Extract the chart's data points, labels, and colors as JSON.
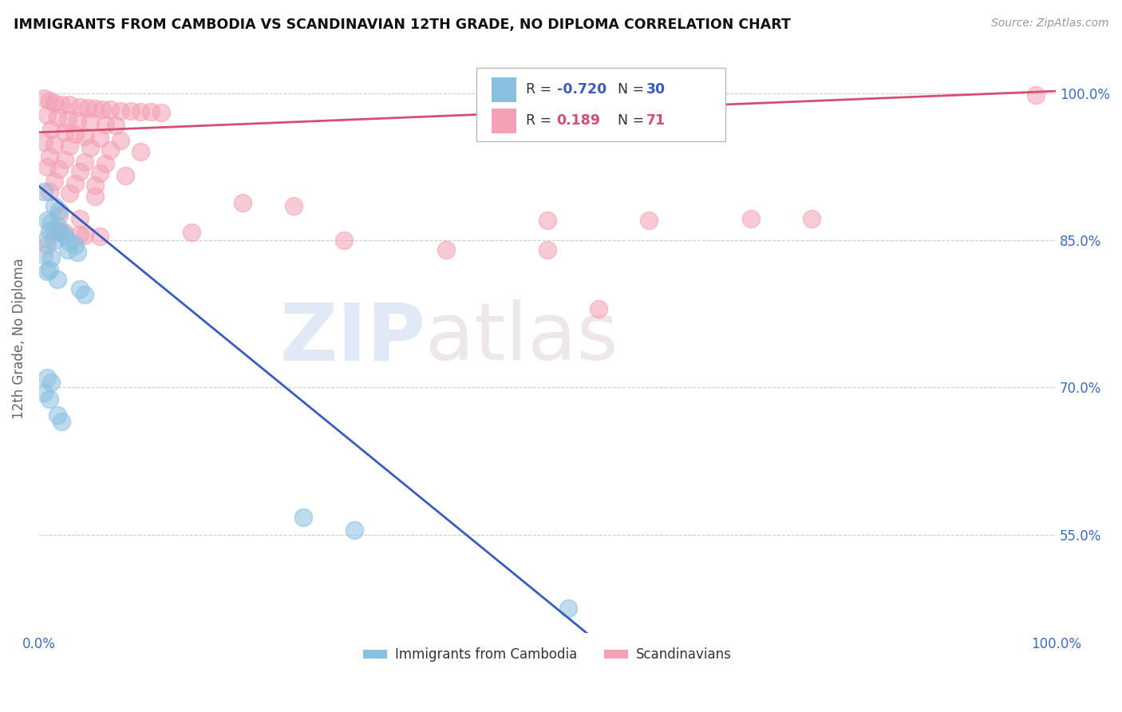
{
  "title": "IMMIGRANTS FROM CAMBODIA VS SCANDINAVIAN 12TH GRADE, NO DIPLOMA CORRELATION CHART",
  "source": "Source: ZipAtlas.com",
  "ylabel": "12th Grade, No Diploma",
  "legend_cambodia": "Immigrants from Cambodia",
  "legend_scandinavian": "Scandinavians",
  "color_cambodia": "#89c0e0",
  "color_scandinavian": "#f4a0b5",
  "color_trendline_cambodia": "#3a5cbf",
  "color_trendline_scandinavian": "#d45070",
  "background_color": "#ffffff",
  "cambodia_scatter": [
    [
      0.005,
      0.9
    ],
    [
      0.015,
      0.885
    ],
    [
      0.02,
      0.88
    ],
    [
      0.008,
      0.87
    ],
    [
      0.012,
      0.868
    ],
    [
      0.018,
      0.865
    ],
    [
      0.01,
      0.86
    ],
    [
      0.022,
      0.858
    ],
    [
      0.025,
      0.855
    ],
    [
      0.008,
      0.852
    ],
    [
      0.015,
      0.85
    ],
    [
      0.03,
      0.848
    ],
    [
      0.035,
      0.845
    ],
    [
      0.028,
      0.84
    ],
    [
      0.038,
      0.838
    ],
    [
      0.005,
      0.835
    ],
    [
      0.012,
      0.832
    ],
    [
      0.01,
      0.82
    ],
    [
      0.008,
      0.818
    ],
    [
      0.018,
      0.81
    ],
    [
      0.04,
      0.8
    ],
    [
      0.045,
      0.795
    ],
    [
      0.008,
      0.71
    ],
    [
      0.012,
      0.705
    ],
    [
      0.005,
      0.695
    ],
    [
      0.01,
      0.688
    ],
    [
      0.018,
      0.672
    ],
    [
      0.022,
      0.665
    ],
    [
      0.26,
      0.568
    ],
    [
      0.31,
      0.555
    ],
    [
      0.52,
      0.475
    ]
  ],
  "scandinavian_scatter": [
    [
      0.005,
      0.995
    ],
    [
      0.01,
      0.992
    ],
    [
      0.015,
      0.99
    ],
    [
      0.022,
      0.988
    ],
    [
      0.03,
      0.988
    ],
    [
      0.04,
      0.986
    ],
    [
      0.048,
      0.985
    ],
    [
      0.055,
      0.984
    ],
    [
      0.062,
      0.983
    ],
    [
      0.07,
      0.983
    ],
    [
      0.08,
      0.982
    ],
    [
      0.09,
      0.982
    ],
    [
      0.1,
      0.981
    ],
    [
      0.11,
      0.981
    ],
    [
      0.12,
      0.98
    ],
    [
      0.008,
      0.978
    ],
    [
      0.018,
      0.975
    ],
    [
      0.028,
      0.973
    ],
    [
      0.038,
      0.972
    ],
    [
      0.05,
      0.97
    ],
    [
      0.065,
      0.968
    ],
    [
      0.075,
      0.967
    ],
    [
      0.012,
      0.963
    ],
    [
      0.025,
      0.96
    ],
    [
      0.035,
      0.958
    ],
    [
      0.045,
      0.956
    ],
    [
      0.06,
      0.954
    ],
    [
      0.08,
      0.952
    ],
    [
      0.005,
      0.95
    ],
    [
      0.015,
      0.948
    ],
    [
      0.03,
      0.946
    ],
    [
      0.05,
      0.944
    ],
    [
      0.07,
      0.942
    ],
    [
      0.1,
      0.94
    ],
    [
      0.01,
      0.935
    ],
    [
      0.025,
      0.932
    ],
    [
      0.045,
      0.93
    ],
    [
      0.065,
      0.928
    ],
    [
      0.008,
      0.925
    ],
    [
      0.02,
      0.922
    ],
    [
      0.04,
      0.92
    ],
    [
      0.06,
      0.918
    ],
    [
      0.085,
      0.916
    ],
    [
      0.015,
      0.91
    ],
    [
      0.035,
      0.908
    ],
    [
      0.055,
      0.906
    ],
    [
      0.01,
      0.9
    ],
    [
      0.03,
      0.898
    ],
    [
      0.055,
      0.895
    ],
    [
      0.2,
      0.888
    ],
    [
      0.25,
      0.885
    ],
    [
      0.02,
      0.875
    ],
    [
      0.04,
      0.872
    ],
    [
      0.5,
      0.87
    ],
    [
      0.6,
      0.87
    ],
    [
      0.7,
      0.872
    ],
    [
      0.76,
      0.872
    ],
    [
      0.02,
      0.858
    ],
    [
      0.04,
      0.856
    ],
    [
      0.06,
      0.854
    ],
    [
      0.4,
      0.84
    ],
    [
      0.5,
      0.84
    ],
    [
      0.55,
      0.78
    ],
    [
      0.15,
      0.858
    ],
    [
      0.3,
      0.85
    ],
    [
      0.98,
      0.998
    ],
    [
      0.015,
      0.86
    ],
    [
      0.025,
      0.858
    ],
    [
      0.045,
      0.855
    ],
    [
      0.008,
      0.845
    ]
  ],
  "xlim": [
    0.0,
    1.0
  ],
  "ylim": [
    0.45,
    1.05
  ],
  "ytick_values": [
    1.0,
    0.85,
    0.7,
    0.55
  ],
  "ytick_labels": [
    "100.0%",
    "85.0%",
    "70.0%",
    "55.0%"
  ]
}
